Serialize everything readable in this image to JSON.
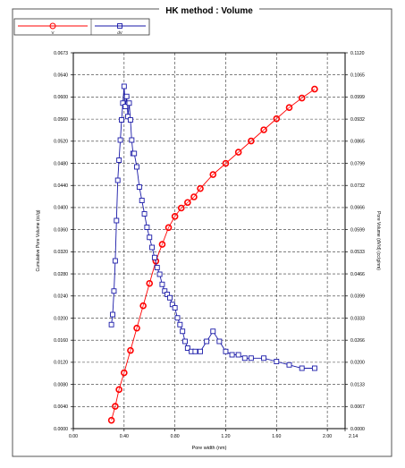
{
  "chart_data": {
    "type": "line",
    "title": "HK method :   Volume",
    "xlabel": "Pore width (nm)",
    "ylabel": "Cumulative Pore Volume (cc/g)",
    "y2label": "Pore Volume (dV/d) (cc/g/nm)",
    "xlim": [
      0,
      2.14
    ],
    "ylim": [
      0,
      0.0673
    ],
    "y2lim": [
      0,
      0.112
    ],
    "x_ticks": [
      0,
      0.4,
      0.8,
      1.2,
      1.6,
      2.0,
      2.14
    ],
    "x_tick_labels": [
      "0.00",
      "0.40",
      "0.80",
      "1.20",
      "1.60",
      "2.00",
      "2.14"
    ],
    "y_tick_labels": [
      "0.0000",
      "0.0040",
      "0.0080",
      "0.0120",
      "0.0160",
      "0.0200",
      "0.0240",
      "0.0280",
      "0.0320",
      "0.0360",
      "0.0400",
      "0.0440",
      "0.0480",
      "0.0520",
      "0.0560",
      "0.0600",
      "0.0640",
      "0.0673"
    ],
    "y2_tick_labels": [
      "0.0000",
      "0.0067",
      "0.0133",
      "0.0200",
      "0.0266",
      "0.0333",
      "0.0399",
      "0.0466",
      "0.0533",
      "0.0599",
      "0.0666",
      "0.0732",
      "0.0799",
      "0.0865",
      "0.0932",
      "0.0999",
      "0.1065",
      "0.1120"
    ],
    "grid": true,
    "legend_position": "top-left",
    "series": [
      {
        "name": "V",
        "axis": "left",
        "color": "#ff0000",
        "marker": "circle",
        "x": [
          0.3,
          0.33,
          0.36,
          0.4,
          0.45,
          0.5,
          0.55,
          0.6,
          0.65,
          0.7,
          0.75,
          0.8,
          0.85,
          0.9,
          0.95,
          1.0,
          1.1,
          1.2,
          1.3,
          1.4,
          1.5,
          1.6,
          1.7,
          1.8,
          1.9
        ],
        "values": [
          0.0015,
          0.004,
          0.007,
          0.01,
          0.014,
          0.018,
          0.022,
          0.026,
          0.03,
          0.033,
          0.036,
          0.038,
          0.0395,
          0.0405,
          0.0415,
          0.043,
          0.0455,
          0.0475,
          0.0495,
          0.0515,
          0.0535,
          0.0555,
          0.0575,
          0.0592,
          0.0608
        ]
      },
      {
        "name": "dV",
        "axis": "right",
        "color": "#1a1aa8",
        "marker": "square",
        "x": [
          0.3,
          0.31,
          0.32,
          0.33,
          0.34,
          0.35,
          0.36,
          0.37,
          0.38,
          0.39,
          0.4,
          0.41,
          0.42,
          0.43,
          0.44,
          0.45,
          0.46,
          0.47,
          0.48,
          0.5,
          0.52,
          0.54,
          0.56,
          0.58,
          0.6,
          0.62,
          0.64,
          0.66,
          0.68,
          0.7,
          0.72,
          0.74,
          0.76,
          0.78,
          0.8,
          0.82,
          0.84,
          0.86,
          0.88,
          0.9,
          0.93,
          0.96,
          1.0,
          1.05,
          1.1,
          1.15,
          1.2,
          1.25,
          1.3,
          1.35,
          1.4,
          1.5,
          1.6,
          1.7,
          1.8,
          1.9
        ],
        "values": [
          0.031,
          0.034,
          0.041,
          0.05,
          0.062,
          0.074,
          0.08,
          0.086,
          0.092,
          0.097,
          0.102,
          0.096,
          0.099,
          0.093,
          0.097,
          0.092,
          0.086,
          0.082,
          0.082,
          0.078,
          0.072,
          0.068,
          0.064,
          0.06,
          0.057,
          0.054,
          0.051,
          0.048,
          0.046,
          0.043,
          0.041,
          0.04,
          0.039,
          0.037,
          0.036,
          0.033,
          0.031,
          0.029,
          0.026,
          0.024,
          0.023,
          0.023,
          0.023,
          0.026,
          0.029,
          0.026,
          0.023,
          0.022,
          0.022,
          0.021,
          0.021,
          0.021,
          0.02,
          0.019,
          0.018,
          0.018
        ]
      }
    ]
  }
}
